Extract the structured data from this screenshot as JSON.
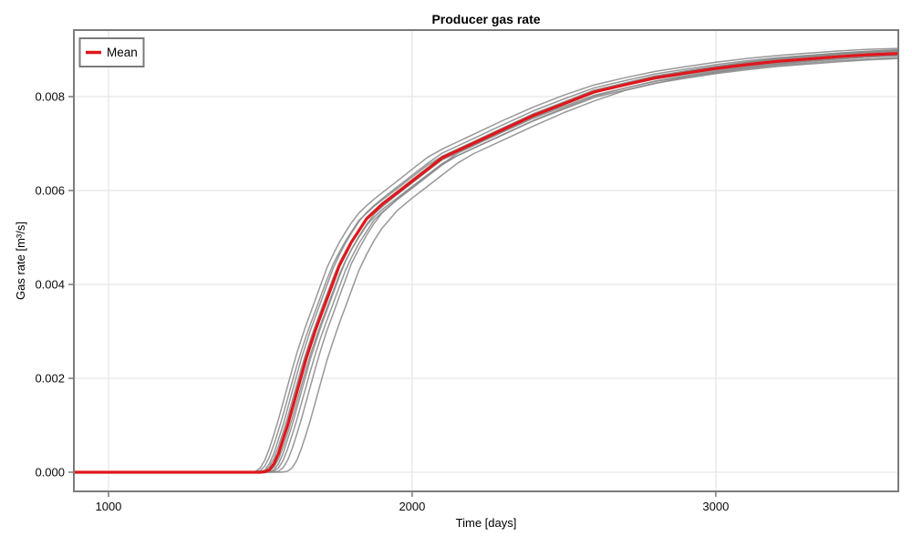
{
  "title": "Producer gas rate",
  "legend": {
    "label": "Mean"
  },
  "axes": {
    "xlabel": "Time [days]",
    "ylabel": "Gas rate [m³/s]",
    "xticks": [
      {
        "v": 1000,
        "label": "1000"
      },
      {
        "v": 2000,
        "label": "2000"
      },
      {
        "v": 3000,
        "label": "3000"
      }
    ],
    "yticks": [
      {
        "v": 0.0,
        "label": "0.000"
      },
      {
        "v": 0.002,
        "label": "0.002"
      },
      {
        "v": 0.004,
        "label": "0.004"
      },
      {
        "v": 0.006,
        "label": "0.006"
      },
      {
        "v": 0.008,
        "label": "0.008"
      }
    ]
  },
  "colors": {
    "mean": "#e0161c",
    "realization": "#8a8a8a",
    "spine": "#7b7b7b",
    "grid": "#e6e6e6",
    "background": "#ffffff"
  },
  "chart_data": {
    "type": "line",
    "title": "Producer gas rate",
    "xlabel": "Time [days]",
    "ylabel": "Gas rate [m³/s]",
    "xlim": [
      886,
      3601
    ],
    "ylim": [
      -0.000408,
      0.009417
    ],
    "grid": true,
    "legend_position": "top-left",
    "x": [
      850,
      1400,
      1440,
      1455,
      1470,
      1485,
      1500,
      1515,
      1530,
      1545,
      1560,
      1575,
      1590,
      1605,
      1620,
      1635,
      1650,
      1665,
      1680,
      1700,
      1720,
      1740,
      1760,
      1780,
      1800,
      1825,
      1850,
      1875,
      1900,
      1950,
      2000,
      2050,
      2100,
      2150,
      2200,
      2300,
      2400,
      2500,
      2600,
      2700,
      2800,
      2900,
      3000,
      3100,
      3200,
      3300,
      3400,
      3500,
      3600
    ],
    "series": [
      {
        "name": "Mean",
        "role": "mean",
        "values": [
          0,
          0,
          0,
          0,
          0,
          0,
          0,
          1e-05,
          5e-05,
          0.00018,
          0.0004,
          0.0007,
          0.001,
          0.00135,
          0.0017,
          0.00205,
          0.0024,
          0.0027,
          0.003,
          0.00335,
          0.0037,
          0.00405,
          0.0044,
          0.00465,
          0.0049,
          0.00515,
          0.0054,
          0.00555,
          0.0057,
          0.00595,
          0.0062,
          0.00645,
          0.0067,
          0.00685,
          0.007,
          0.0073,
          0.0076,
          0.00785,
          0.0081,
          0.00825,
          0.0084,
          0.0085,
          0.0086,
          0.00868,
          0.00875,
          0.0088,
          0.00885,
          0.00889,
          0.00892
        ]
      }
    ],
    "realizations": {
      "description": "unlabeled gray ensemble members, each = scale * mean(t - t_shift_days)",
      "count": 10,
      "params": [
        {
          "t_shift_days": -35,
          "scale": 1.012
        },
        {
          "t_shift_days": -25,
          "scale": 0.994
        },
        {
          "t_shift_days": -15,
          "scale": 1.008
        },
        {
          "t_shift_days": -8,
          "scale": 0.99
        },
        {
          "t_shift_days": 0,
          "scale": 1.005
        },
        {
          "t_shift_days": 8,
          "scale": 0.988
        },
        {
          "t_shift_days": 15,
          "scale": 1.006
        },
        {
          "t_shift_days": 25,
          "scale": 0.996
        },
        {
          "t_shift_days": 40,
          "scale": 1.01
        },
        {
          "t_shift_days": 70,
          "scale": 0.998
        }
      ]
    }
  }
}
